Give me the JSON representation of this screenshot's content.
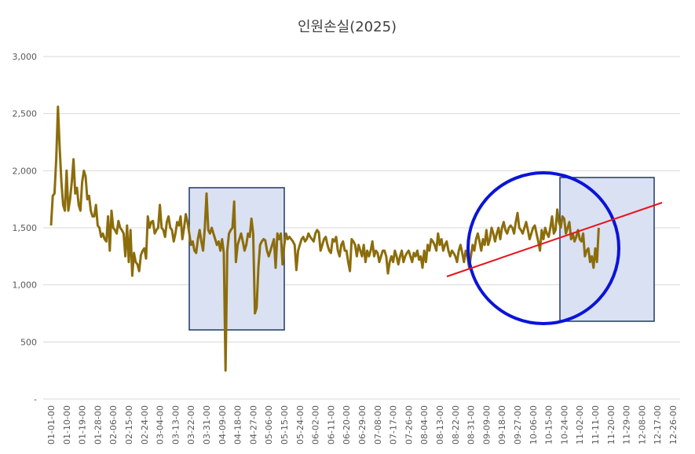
{
  "chart_data": {
    "type": "line",
    "title": "인원손실(2025)",
    "categories": [
      "01-01-00",
      null,
      null,
      null,
      null,
      null,
      null,
      null,
      null,
      "01-10-00",
      null,
      null,
      null,
      null,
      null,
      null,
      null,
      null,
      "01-19-00",
      null,
      null,
      null,
      null,
      null,
      null,
      null,
      null,
      "01-28-00",
      null,
      null,
      null,
      null,
      null,
      null,
      null,
      null,
      "02-06-00",
      null,
      null,
      null,
      null,
      null,
      null,
      null,
      null,
      "02-15-00",
      null,
      null,
      null,
      null,
      null,
      null,
      null,
      null,
      "02-24-00",
      null,
      null,
      null,
      null,
      null,
      null,
      null,
      null,
      "03-04-00",
      null,
      null,
      null,
      null,
      null,
      null,
      null,
      null,
      "03-13-00",
      null,
      null,
      null,
      null,
      null,
      null,
      null,
      null,
      "03-22-00",
      null,
      null,
      null,
      null,
      null,
      null,
      null,
      null,
      "03-31-00",
      null,
      null,
      null,
      null,
      null,
      null,
      null,
      null,
      "04-09-00",
      null,
      null,
      null,
      null,
      null,
      null,
      null,
      null,
      "04-18-00",
      null,
      null,
      null,
      null,
      null,
      null,
      null,
      null,
      "04-27-00",
      null,
      null,
      null,
      null,
      null,
      null,
      null,
      null,
      "05-06-00",
      null,
      null,
      null,
      null,
      null,
      null,
      null,
      null,
      "05-15-00",
      null,
      null,
      null,
      null,
      null,
      null,
      null,
      null,
      "05-24-00",
      null,
      null,
      null,
      null,
      null,
      null,
      null,
      null,
      "06-02-00",
      null,
      null,
      null,
      null,
      null,
      null,
      null,
      null,
      "06-11-00",
      null,
      null,
      null,
      null,
      null,
      null,
      null,
      null,
      "06-20-00",
      null,
      null,
      null,
      null,
      null,
      null,
      null,
      null,
      "06-29-00",
      null,
      null,
      null,
      null,
      null,
      null,
      null,
      null,
      "07-08-00",
      null,
      null,
      null,
      null,
      null,
      null,
      null,
      null,
      "07-17-00",
      null,
      null,
      null,
      null,
      null,
      null,
      null,
      null,
      "07-26-00",
      null,
      null,
      null,
      null,
      null,
      null,
      null,
      null,
      "08-04-00",
      null,
      null,
      null,
      null,
      null,
      null,
      null,
      null,
      "08-13-00",
      null,
      null,
      null,
      null,
      null,
      null,
      null,
      null,
      "08-22-00",
      null,
      null,
      null,
      null,
      null,
      null,
      null,
      null,
      "08-31-00",
      null,
      null,
      null,
      null,
      null,
      null,
      null,
      null,
      "09-09-00",
      null,
      null,
      null,
      null,
      null,
      null,
      null,
      null,
      "09-18-00",
      null,
      null,
      null,
      null,
      null,
      null,
      null,
      null,
      "09-27-00",
      null,
      null,
      null,
      null,
      null,
      null,
      null,
      null,
      "10-06-00",
      null,
      null,
      null,
      null,
      null,
      null,
      null,
      null,
      "10-15-00",
      null,
      null,
      null,
      null,
      null,
      null,
      null,
      null,
      "10-24-00",
      null,
      null,
      null,
      null,
      null,
      null,
      null,
      null,
      "11-02-00",
      null,
      null,
      null,
      null,
      null,
      null,
      null,
      null,
      "11-11-00",
      null,
      null,
      null,
      null,
      null,
      null,
      null,
      null,
      "11-20-00",
      null,
      null,
      null,
      null,
      null,
      null,
      null,
      null,
      "11-29-00",
      null,
      null,
      null,
      null,
      null,
      null,
      null,
      null,
      "12-08-00",
      null,
      null,
      null,
      null,
      null,
      null,
      null,
      null,
      "12-17-00",
      null,
      null,
      null,
      null,
      null,
      null,
      null,
      null,
      "12-26-00",
      null,
      null,
      null,
      null,
      null
    ],
    "values": [
      1520,
      1780,
      1800,
      2100,
      2560,
      2200,
      1900,
      1700,
      1650,
      2000,
      1650,
      1750,
      1900,
      2100,
      1800,
      1850,
      1700,
      1650,
      1900,
      2000,
      1950,
      1750,
      1780,
      1650,
      1600,
      1600,
      1700,
      1520,
      1500,
      1420,
      1450,
      1400,
      1380,
      1600,
      1300,
      1650,
      1500,
      1480,
      1450,
      1560,
      1500,
      1480,
      1450,
      1250,
      1520,
      1200,
      1480,
      1080,
      1280,
      1200,
      1180,
      1120,
      1260,
      1300,
      1320,
      1230,
      1600,
      1500,
      1550,
      1560,
      1450,
      1480,
      1500,
      1700,
      1500,
      1480,
      1420,
      1550,
      1600,
      1500,
      1480,
      1380,
      1450,
      1550,
      1520,
      1600,
      1400,
      1500,
      1620,
      1550,
      1450,
      1350,
      1380,
      1300,
      1280,
      1400,
      1480,
      1380,
      1300,
      1500,
      1800,
      1480,
      1450,
      1500,
      1450,
      1400,
      1350,
      1380,
      1300,
      1400,
      1280,
      250,
      1300,
      1450,
      1480,
      1500,
      1730,
      1200,
      1350,
      1400,
      1450,
      1380,
      1300,
      1350,
      1450,
      1420,
      1580,
      1450,
      750,
      800,
      1150,
      1350,
      1380,
      1400,
      1390,
      1300,
      1250,
      1300,
      1350,
      1400,
      1150,
      1450,
      1400,
      1450,
      1180,
      1350,
      1450,
      1400,
      1420,
      1400,
      1380,
      1350,
      1130,
      1300,
      1350,
      1400,
      1420,
      1380,
      1400,
      1450,
      1420,
      1400,
      1380,
      1450,
      1480,
      1460,
      1300,
      1350,
      1400,
      1420,
      1350,
      1300,
      1280,
      1400,
      1380,
      1420,
      1300,
      1250,
      1350,
      1380,
      1300,
      1300,
      1200,
      1120,
      1400,
      1380,
      1350,
      1250,
      1350,
      1300,
      1250,
      1350,
      1200,
      1300,
      1250,
      1300,
      1380,
      1250,
      1300,
      1280,
      1200,
      1250,
      1300,
      1300,
      1250,
      1100,
      1200,
      1250,
      1200,
      1300,
      1250,
      1180,
      1250,
      1300,
      1200,
      1250,
      1280,
      1300,
      1250,
      1200,
      1280,
      1250,
      1300,
      1220,
      1250,
      1150,
      1300,
      1200,
      1350,
      1300,
      1400,
      1380,
      1350,
      1300,
      1450,
      1350,
      1400,
      1300,
      1350,
      1380,
      1300,
      1250,
      1300,
      1280,
      1250,
      1200,
      1300,
      1350,
      1280,
      1200,
      1300,
      1250,
      1150,
      1250,
      1350,
      1300,
      1400,
      1450,
      1380,
      1300,
      1400,
      1350,
      1480,
      1350,
      1400,
      1500,
      1450,
      1380,
      1450,
      1500,
      1400,
      1500,
      1550,
      1480,
      1450,
      1500,
      1520,
      1500,
      1450,
      1550,
      1630,
      1500,
      1480,
      1450,
      1500,
      1550,
      1480,
      1400,
      1450,
      1500,
      1520,
      1450,
      1380,
      1300,
      1480,
      1400,
      1500,
      1450,
      1420,
      1500,
      1600,
      1450,
      1480,
      1660,
      1550,
      1500,
      1600,
      1580,
      1450,
      1500,
      1550,
      1400,
      1450,
      1380,
      1420,
      1480,
      1400,
      1380,
      1450,
      1250,
      1300,
      1320,
      1200,
      1250,
      1150,
      1320,
      1200,
      1500,
      null,
      null,
      null,
      null,
      null,
      null,
      null,
      null,
      null,
      null,
      null,
      null,
      null,
      null,
      null,
      null,
      null,
      null,
      null,
      null,
      null,
      null,
      null,
      null,
      null,
      null,
      null,
      null,
      null,
      null,
      null,
      null,
      null,
      null,
      null,
      null,
      null,
      null,
      null,
      null,
      null,
      null,
      null,
      null,
      null,
      null,
      null,
      null
    ],
    "color": "#8c6d0c",
    "ylim": [
      0,
      3000
    ],
    "yticks": [
      {
        "value": 0,
        "label": "-"
      },
      500,
      {
        "value": 1000,
        "label": "1,000"
      },
      {
        "value": 1500,
        "label": "1,500"
      },
      {
        "value": 2000,
        "label": "2,000"
      },
      {
        "value": 2500,
        "label": "2,500"
      },
      {
        "value": 3000,
        "label": "3,000"
      }
    ],
    "grid": true
  }
}
